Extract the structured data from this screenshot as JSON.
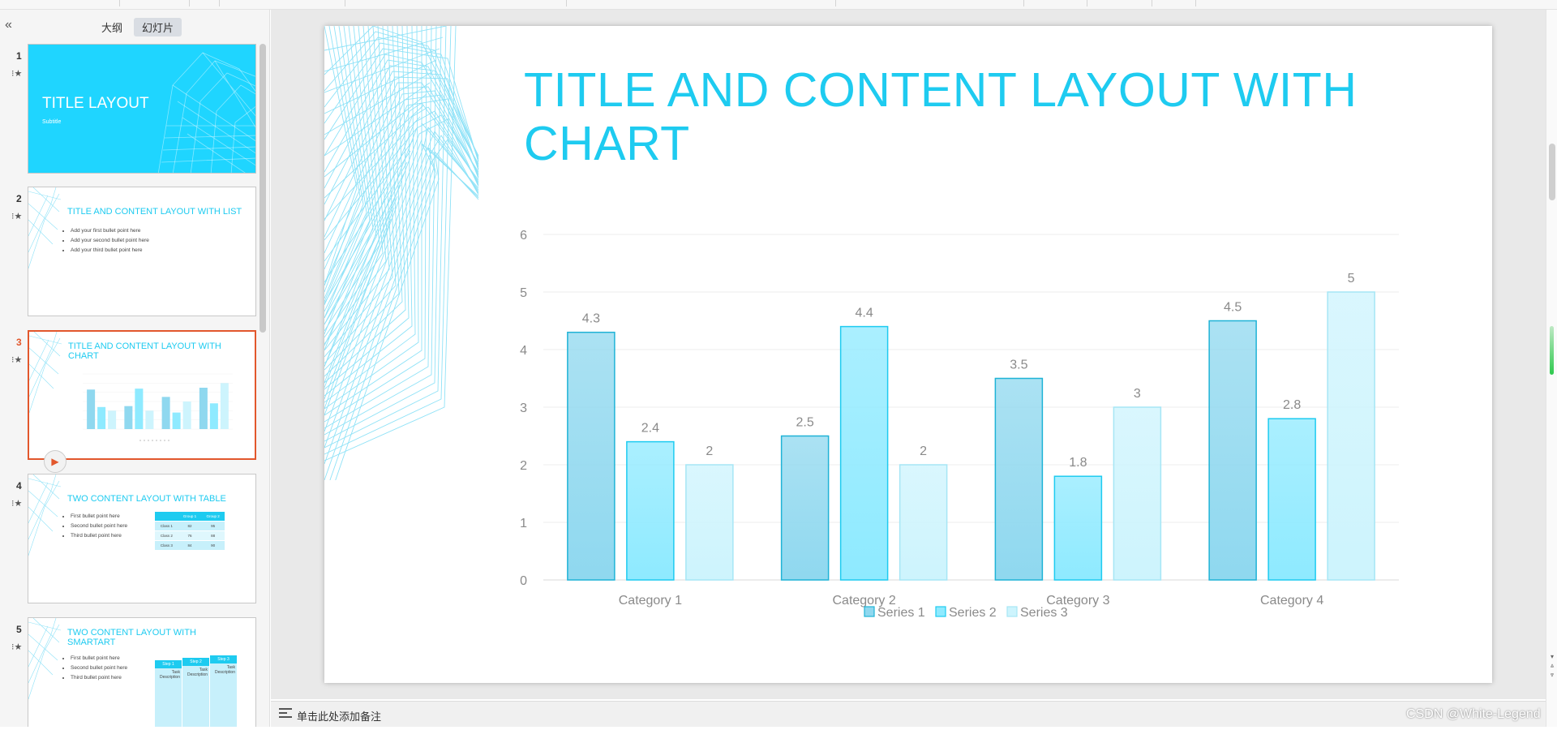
{
  "left_panel": {
    "tabs": [
      {
        "label": "大纲"
      },
      {
        "label": "幻灯片"
      }
    ],
    "slides": [
      {
        "number": "1",
        "title": "TITLE LAYOUT",
        "subtitle": "Subtitle"
      },
      {
        "number": "2",
        "title": "TITLE AND CONTENT LAYOUT WITH LIST",
        "bullets": [
          "Add your first bullet point here",
          "Add your second bullet point here",
          "Add your third bullet point here"
        ]
      },
      {
        "number": "3",
        "title": "TITLE AND CONTENT LAYOUT WITH CHART"
      },
      {
        "number": "4",
        "title": "TWO CONTENT LAYOUT WITH TABLE",
        "bullets": [
          "First bullet point here",
          "Second bullet point here",
          "Third bullet point here"
        ],
        "table": {
          "header": [
            "",
            "Group 1",
            "Group 2"
          ],
          "rows": [
            [
              "Class 1",
              "82",
              "95"
            ],
            [
              "Class 2",
              "76",
              "88"
            ],
            [
              "Class 3",
              "84",
              "90"
            ]
          ]
        }
      },
      {
        "number": "5",
        "title": "TWO CONTENT LAYOUT WITH SMARTART",
        "bullets": [
          "First bullet point here",
          "Second bullet point here",
          "Third bullet point here"
        ],
        "steps": [
          "Step 1",
          "Step 2",
          "Step 3"
        ],
        "step_text": "Task Description"
      }
    ]
  },
  "slide": {
    "title": "TITLE AND CONTENT LAYOUT WITH CHART"
  },
  "chart_data": {
    "type": "bar",
    "title": "",
    "categories": [
      "Category 1",
      "Category 2",
      "Category 3",
      "Category 4"
    ],
    "series": [
      {
        "name": "Series 1",
        "values": [
          4.3,
          2.5,
          3.5,
          4.5
        ],
        "color": "#8fd8ef"
      },
      {
        "name": "Series 2",
        "values": [
          2.4,
          4.4,
          1.8,
          2.8
        ],
        "color": "#8eeaff"
      },
      {
        "name": "Series 3",
        "values": [
          2,
          2,
          3,
          5
        ],
        "color": "#cdf4fd"
      }
    ],
    "ylim": [
      0,
      6
    ],
    "yticks": [
      "0",
      "1",
      "2",
      "3",
      "4",
      "5",
      "6"
    ],
    "grid": true,
    "legend": "bottom"
  },
  "notes": {
    "placeholder": "单击此处添加备注"
  },
  "watermark": "CSDN @White-Legend",
  "colors": {
    "accent": "#1ecbf0",
    "selection": "#e2572c"
  }
}
